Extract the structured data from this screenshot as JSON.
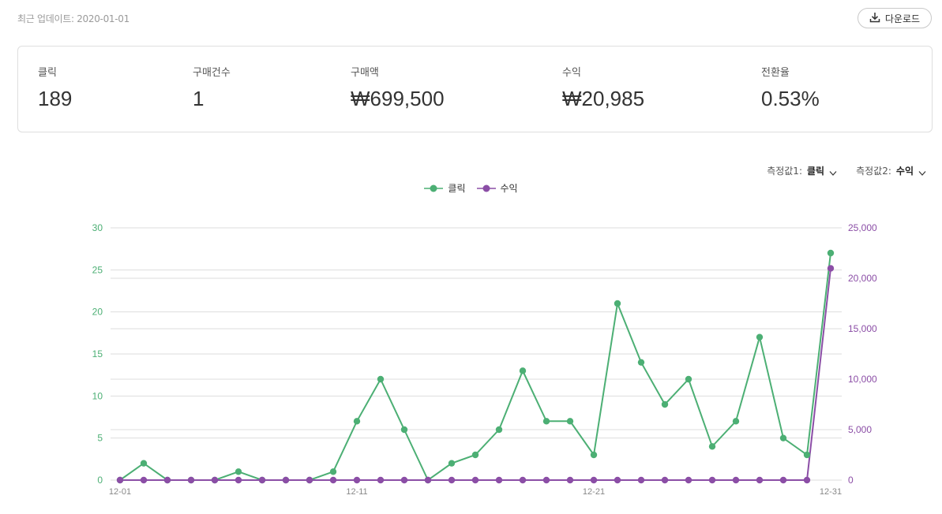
{
  "header": {
    "last_updated": "최근 업데이트: 2020-01-01",
    "download_label": "다운로드"
  },
  "stats": [
    {
      "label": "클릭",
      "value": "189"
    },
    {
      "label": "구매건수",
      "value": "1"
    },
    {
      "label": "구매액",
      "value": "₩699,500"
    },
    {
      "label": "수익",
      "value": "₩20,985"
    },
    {
      "label": "전환율",
      "value": "0.53%"
    }
  ],
  "measures": {
    "m1_label": "측정값1:",
    "m1_value": "클릭",
    "m2_label": "측정값2:",
    "m2_value": "수익"
  },
  "colors": {
    "click": "#4caf74",
    "revenue": "#8b4ea6",
    "grid": "#dddddd"
  },
  "chart_data": {
    "type": "line",
    "x": [
      "12-01",
      "12-02",
      "12-03",
      "12-04",
      "12-05",
      "12-06",
      "12-07",
      "12-08",
      "12-09",
      "12-10",
      "12-11",
      "12-12",
      "12-13",
      "12-14",
      "12-15",
      "12-16",
      "12-17",
      "12-18",
      "12-19",
      "12-20",
      "12-21",
      "12-22",
      "12-23",
      "12-24",
      "12-25",
      "12-26",
      "12-27",
      "12-28",
      "12-29",
      "12-30",
      "12-31"
    ],
    "x_tick_labels": [
      "12-01",
      "12-11",
      "12-21",
      "12-31"
    ],
    "series": [
      {
        "name": "클릭",
        "axis": "left",
        "values": [
          0,
          2,
          0,
          0,
          0,
          1,
          0,
          0,
          0,
          1,
          7,
          12,
          6,
          0,
          2,
          3,
          6,
          13,
          7,
          7,
          3,
          21,
          14,
          9,
          12,
          4,
          7,
          17,
          5,
          3,
          27
        ]
      },
      {
        "name": "수익",
        "axis": "right",
        "values": [
          0,
          0,
          0,
          0,
          0,
          0,
          0,
          0,
          0,
          0,
          0,
          0,
          0,
          0,
          0,
          0,
          0,
          0,
          0,
          0,
          0,
          0,
          0,
          0,
          0,
          0,
          0,
          0,
          0,
          0,
          20985
        ]
      }
    ],
    "y_left": {
      "ticks": [
        "0",
        "5",
        "10",
        "15",
        "20",
        "25",
        "30"
      ],
      "ylim": [
        0,
        30
      ]
    },
    "y_right": {
      "ticks": [
        "0",
        "5,000",
        "10,000",
        "15,000",
        "20,000",
        "25,000"
      ],
      "ylim": [
        0,
        25000
      ]
    },
    "grid": true,
    "legend_position": "top-center"
  }
}
